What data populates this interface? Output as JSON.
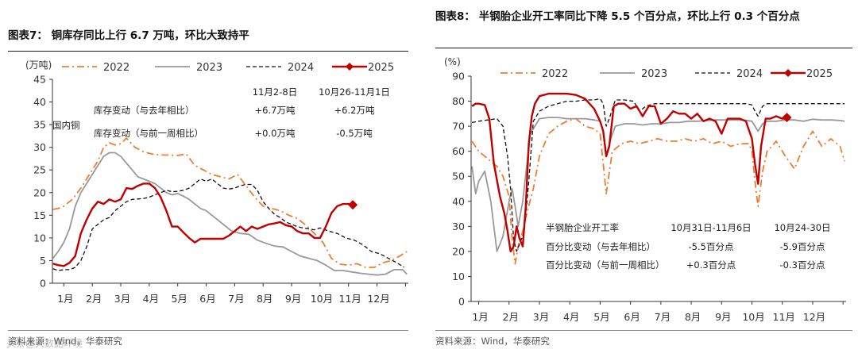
{
  "chart_data": [
    {
      "type": "line",
      "title": "图表7：  铜库存同比上行 6.7 万吨，环比大致持平",
      "ylabel": "(万吨)",
      "ylim": [
        0,
        45
      ],
      "yticks": [
        0,
        5,
        10,
        15,
        20,
        25,
        30,
        35,
        40,
        45
      ],
      "xlim": [
        0.6,
        13.1
      ],
      "categories": [
        "1月",
        "2月",
        "3月",
        "4月",
        "5月",
        "6月",
        "7月",
        "8月",
        "9月",
        "10月",
        "11月",
        "12月"
      ],
      "side_label": "国内铜",
      "series": [
        {
          "name": "2022",
          "color": "#ED7D31",
          "style": "dashdot",
          "x": [
            0.62,
            0.8,
            1.0,
            1.3,
            1.6,
            1.9,
            2.2,
            2.4,
            2.6,
            2.8,
            3.0,
            3.2,
            3.5,
            3.8,
            4.1,
            4.4,
            4.7,
            5.0,
            5.3,
            5.6,
            5.9,
            6.2,
            6.5,
            6.8,
            7.1,
            7.4,
            7.7,
            8.0,
            8.3,
            8.6,
            8.9,
            9.2,
            9.5,
            9.8,
            10.1,
            10.4,
            10.7,
            11.0,
            11.3,
            11.6,
            11.9,
            12.2,
            12.5,
            12.8,
            13.05
          ],
          "y": [
            16.3,
            16.5,
            17,
            18.5,
            21,
            24,
            27,
            30,
            31,
            30.5,
            30.8,
            32,
            30,
            29,
            28.5,
            28.3,
            28.3,
            28.2,
            28.5,
            26,
            25,
            24,
            23.5,
            23,
            24,
            21.5,
            19,
            17,
            16.5,
            16,
            15,
            14.3,
            12.8,
            11,
            9,
            5.5,
            4.2,
            4,
            4.3,
            3.5,
            3.5,
            4.5,
            5,
            6,
            7
          ]
        },
        {
          "name": "2023",
          "color": "#999999",
          "style": "solid",
          "x": [
            0.62,
            0.8,
            1.0,
            1.2,
            1.4,
            1.6,
            1.8,
            2.0,
            2.2,
            2.4,
            2.6,
            2.8,
            3.0,
            3.2,
            3.4,
            3.6,
            3.8,
            4.0,
            4.2,
            4.4,
            4.6,
            4.8,
            5.0,
            5.2,
            5.4,
            5.6,
            5.8,
            6.0,
            6.3,
            6.6,
            6.9,
            7.2,
            7.5,
            7.8,
            8.1,
            8.4,
            8.7,
            9.0,
            9.3,
            9.6,
            9.9,
            10.2,
            10.5,
            10.8,
            11.1,
            11.4,
            11.7,
            12.0,
            12.3,
            12.6,
            12.9,
            13.05
          ],
          "y": [
            5.5,
            7,
            9,
            12,
            17,
            20,
            22,
            24,
            26,
            28,
            28.8,
            28.8,
            28,
            26.5,
            25,
            23.5,
            23,
            22.5,
            22,
            21,
            20,
            19.5,
            19.8,
            19.2,
            18.5,
            17.5,
            16.5,
            16,
            14.5,
            13,
            11.5,
            11,
            10.8,
            9.5,
            8.8,
            8.2,
            8,
            7,
            6,
            5.5,
            5,
            4,
            2.8,
            2.8,
            2.5,
            2.2,
            2,
            1.8,
            2,
            3,
            3,
            2
          ]
        },
        {
          "name": "2024",
          "color": "#111111",
          "style": "dashed",
          "x": [
            0.62,
            0.8,
            1.0,
            1.2,
            1.4,
            1.6,
            1.8,
            2.0,
            2.2,
            2.4,
            2.6,
            2.8,
            3.0,
            3.2,
            3.4,
            3.6,
            3.8,
            4.0,
            4.2,
            4.4,
            4.6,
            4.8,
            5.0,
            5.2,
            5.4,
            5.6,
            5.8,
            6.0,
            6.2,
            6.4,
            6.6,
            6.8,
            7.0,
            7.2,
            7.4,
            7.6,
            7.8,
            8.0,
            8.2,
            8.4,
            8.6,
            8.8,
            9.0,
            9.2,
            9.4,
            9.6,
            9.8,
            10.0,
            10.3,
            10.6,
            10.9,
            11.2,
            11.5,
            11.8,
            12.1,
            12.4,
            12.7,
            12.95
          ],
          "y": [
            3.2,
            2.8,
            3,
            3,
            3.5,
            5,
            8,
            12,
            13,
            14,
            14.5,
            16,
            17,
            18,
            18.5,
            18.6,
            18.7,
            19,
            19.5,
            20,
            20.5,
            20.2,
            20.3,
            20.5,
            21,
            22,
            23,
            22.5,
            23,
            22,
            21,
            20.8,
            21,
            21.5,
            21.8,
            21.8,
            20.5,
            18,
            16.5,
            15.2,
            14.5,
            13.5,
            13,
            12.5,
            12.2,
            12,
            11.8,
            12.2,
            11.5,
            11,
            10,
            9.5,
            8.5,
            7,
            6.5,
            5.5,
            4.5,
            3.5
          ]
        },
        {
          "name": "2025",
          "color": "#C00000",
          "style": "solid",
          "marker_last": "diamond",
          "x": [
            0.62,
            0.8,
            1.0,
            1.2,
            1.4,
            1.6,
            1.8,
            2.0,
            2.2,
            2.4,
            2.6,
            2.8,
            3.0,
            3.2,
            3.4,
            3.6,
            3.8,
            4.0,
            4.2,
            4.4,
            4.6,
            4.8,
            5.0,
            5.2,
            5.4,
            5.6,
            5.8,
            6.0,
            6.2,
            6.4,
            6.6,
            6.8,
            7.0,
            7.2,
            7.4,
            7.6,
            7.8,
            8.0,
            8.2,
            8.4,
            8.6,
            8.8,
            9.0,
            9.2,
            9.4,
            9.6,
            9.8,
            10.0,
            10.2,
            10.4,
            10.6,
            10.8,
            11.0,
            11.15
          ],
          "y": [
            4.3,
            4,
            3.8,
            4.5,
            6,
            11,
            14,
            16.5,
            18,
            17.5,
            18.5,
            18,
            18.5,
            21,
            20.8,
            21.5,
            22,
            22,
            21,
            19,
            16,
            12.5,
            12.5,
            11.2,
            10,
            9,
            9.8,
            9.8,
            9.8,
            9.8,
            9.8,
            10.5,
            11.5,
            12.5,
            11.5,
            12.5,
            12,
            12.5,
            13,
            13.2,
            13.5,
            12.8,
            12.5,
            11.5,
            11,
            11,
            10,
            10,
            12.5,
            15.5,
            17,
            17.5,
            17.5,
            17.3
          ]
        }
      ],
      "info_table": {
        "header": [
          "11月2-8日",
          "10月26-11月1日"
        ],
        "rows": [
          {
            "label": "库存变动（与去年相比）",
            "values": [
              "+6.7万吨",
              "+6.2万吨"
            ]
          },
          {
            "label": "库存变动（与前一周相比）",
            "values": [
              "+0.0万吨",
              "-0.5万吨"
            ]
          }
        ]
      },
      "source": "资料来源：Wind，华泰研究",
      "watermark": "头条@大数据环境"
    },
    {
      "type": "line",
      "title": "图表8：  半钢胎企业开工率同比下降 5.5 个百分点，环比上行 0.3 个百分点",
      "ylabel": "(%)",
      "ylim": [
        0,
        90
      ],
      "yticks": [
        0,
        10,
        20,
        30,
        40,
        50,
        60,
        70,
        80,
        90
      ],
      "xlim": [
        0.75,
        13.1
      ],
      "categories": [
        "1月",
        "2月",
        "3月",
        "4月",
        "5月",
        "6月",
        "7月",
        "8月",
        "9月",
        "10月",
        "11月",
        "12月"
      ],
      "series": [
        {
          "name": "2022",
          "color": "#ED7D31",
          "style": "dashdot",
          "x": [
            0.78,
            1.0,
            1.3,
            1.6,
            1.8,
            2.0,
            2.1,
            2.2,
            2.3,
            2.45,
            2.6,
            2.8,
            3.0,
            3.3,
            3.6,
            3.9,
            4.2,
            4.5,
            4.8,
            5.0,
            5.1,
            5.2,
            5.4,
            5.7,
            6.0,
            6.3,
            6.6,
            6.9,
            7.2,
            7.5,
            7.8,
            8.1,
            8.4,
            8.7,
            9.0,
            9.3,
            9.6,
            9.9,
            10.0,
            10.1,
            10.2,
            10.35,
            10.5,
            10.8,
            11.1,
            11.4,
            11.7,
            12.0,
            12.3,
            12.6,
            12.9,
            13.05
          ],
          "y": [
            64,
            60,
            57,
            54,
            50,
            42,
            25,
            15,
            22,
            28,
            36,
            45,
            58,
            67,
            70,
            72,
            73,
            70,
            69,
            67,
            55,
            43,
            60,
            63,
            64,
            63,
            64,
            65,
            64,
            64,
            65,
            64,
            65,
            63,
            64,
            62,
            63,
            63,
            60,
            48,
            38,
            52,
            60,
            64,
            58,
            53,
            62,
            68,
            62,
            65,
            62,
            56
          ]
        },
        {
          "name": "2023",
          "color": "#999999",
          "style": "solid",
          "x": [
            0.78,
            0.9,
            1.0,
            1.2,
            1.4,
            1.6,
            1.8,
            2.0,
            2.1,
            2.2,
            2.3,
            2.45,
            2.7,
            3.0,
            3.3,
            3.6,
            3.9,
            4.2,
            4.5,
            4.8,
            5.0,
            5.1,
            5.2,
            5.35,
            5.5,
            5.8,
            6.1,
            6.4,
            6.7,
            7.0,
            7.3,
            7.6,
            7.9,
            8.2,
            8.5,
            8.8,
            9.1,
            9.4,
            9.7,
            10.0,
            10.1,
            10.2,
            10.35,
            10.5,
            10.8,
            11.1,
            11.4,
            11.7,
            12.0,
            12.3,
            12.6,
            12.9,
            13.05
          ],
          "y": [
            54,
            43,
            48,
            52,
            40,
            20,
            26,
            40,
            45,
            38,
            30,
            40,
            67,
            73,
            73.5,
            73.5,
            73,
            73,
            73,
            72.5,
            72,
            68,
            58,
            65,
            70,
            71,
            71,
            70.5,
            71,
            71,
            71.5,
            71.5,
            72,
            72,
            72.3,
            72.5,
            72.5,
            72.5,
            72.5,
            72,
            70,
            68,
            71,
            72,
            72,
            72.5,
            72.5,
            72,
            72.8,
            72.5,
            72.5,
            72.3,
            72
          ]
        },
        {
          "name": "2024",
          "color": "#111111",
          "style": "dashed",
          "x": [
            0.78,
            1.0,
            1.3,
            1.6,
            1.8,
            1.95,
            2.05,
            2.15,
            2.25,
            2.35,
            2.5,
            2.65,
            2.8,
            3.0,
            3.3,
            3.6,
            3.9,
            4.2,
            4.5,
            4.8,
            5.0,
            5.1,
            5.2,
            5.3,
            5.5,
            5.8,
            6.1,
            6.3,
            6.5,
            6.8,
            7.1,
            7.4,
            7.7,
            8.0,
            8.3,
            8.6,
            8.9,
            9.2,
            9.5,
            9.8,
            10.0,
            10.1,
            10.2,
            10.35,
            10.5,
            10.8,
            11.1,
            11.4,
            11.7,
            12.0,
            12.3,
            12.6,
            12.9,
            13.05
          ],
          "y": [
            71.5,
            72,
            72.5,
            73,
            70,
            58,
            45,
            25,
            20,
            23,
            28,
            48,
            72,
            76,
            78,
            79,
            80,
            80,
            80.5,
            80.5,
            81,
            79,
            70,
            73,
            80.5,
            80.5,
            80,
            76,
            78,
            79,
            79,
            79,
            79,
            79,
            79,
            79,
            79,
            79,
            79,
            79,
            78.5,
            76,
            74,
            78,
            79,
            79,
            79,
            79,
            79,
            79,
            79,
            79,
            79,
            79
          ]
        },
        {
          "name": "2025",
          "color": "#C00000",
          "style": "solid",
          "marker_last": "diamond",
          "x": [
            0.78,
            0.9,
            1.0,
            1.2,
            1.35,
            1.5,
            1.7,
            1.85,
            1.95,
            2.05,
            2.15,
            2.25,
            2.35,
            2.45,
            2.55,
            2.65,
            2.75,
            2.85,
            3.0,
            3.3,
            3.6,
            3.9,
            4.2,
            4.5,
            4.8,
            5.0,
            5.1,
            5.2,
            5.3,
            5.45,
            5.6,
            5.8,
            6.0,
            6.2,
            6.4,
            6.6,
            6.8,
            7.0,
            7.2,
            7.4,
            7.6,
            7.8,
            8.0,
            8.2,
            8.4,
            8.6,
            8.8,
            9.0,
            9.2,
            9.4,
            9.6,
            9.8,
            10.0,
            10.1,
            10.2,
            10.3,
            10.45,
            10.6,
            10.8,
            11.0,
            11.15
          ],
          "y": [
            78,
            79,
            79,
            78.5,
            73,
            55,
            42,
            35,
            28,
            20,
            22,
            30,
            25,
            22,
            38,
            63,
            74,
            79,
            82,
            83,
            83,
            83,
            82.5,
            81,
            77,
            72,
            68,
            58,
            62,
            78,
            79,
            79,
            77,
            78,
            74,
            78,
            78,
            71,
            73,
            76,
            75,
            75,
            73,
            75,
            72,
            73,
            72,
            67,
            73,
            73,
            73,
            72,
            65,
            55,
            47,
            62,
            73,
            73,
            74,
            73,
            73.5
          ]
        }
      ],
      "info_table": {
        "title_label": "半钢胎企业开工率",
        "header": [
          "10月31日-11月6日",
          "10月24-30日"
        ],
        "rows": [
          {
            "label": "百分比变动（与去年相比）",
            "values": [
              "-5.5百分点",
              "-5.9百分点"
            ]
          },
          {
            "label": "百分比变动（与前一周相比）",
            "values": [
              "+0.3百分点",
              "-0.3百分点"
            ]
          }
        ]
      },
      "source": "资料来源：Wind，华泰研究"
    }
  ]
}
